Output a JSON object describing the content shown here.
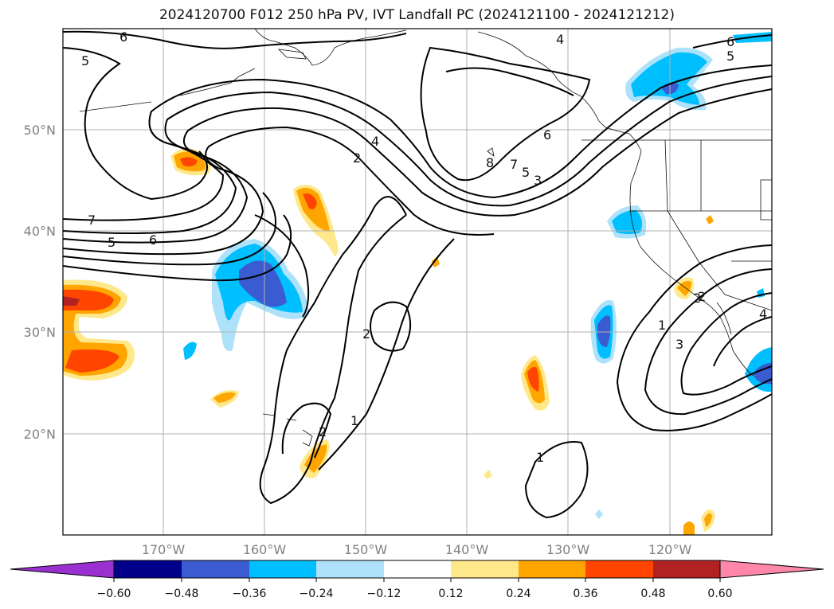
{
  "title": "2024120700 F012 250 hPa PV, IVT Landfall PC (2024121100 - 2024121212)",
  "map": {
    "lat_labels": [
      "50°N",
      "40°N",
      "30°N",
      "20°N"
    ],
    "lon_labels": [
      "170°W",
      "160°W",
      "150°W",
      "140°W",
      "130°W",
      "120°W"
    ],
    "contour_labels": [
      "6",
      "5",
      "4",
      "6",
      "5",
      "7",
      "5",
      "6",
      "4",
      "2",
      "2",
      "6",
      "7",
      "3",
      "5",
      "8",
      "2",
      "1",
      "2",
      "1",
      "1",
      "3",
      "2",
      "4"
    ]
  },
  "colorbar": {
    "tick_labels": [
      "−0.60",
      "−0.48",
      "−0.36",
      "−0.24",
      "−0.12",
      "0.12",
      "0.24",
      "0.36",
      "0.48",
      "0.60"
    ],
    "colors": [
      "#9b30d0",
      "#00008b",
      "#3b5bd0",
      "#00bfff",
      "#aee2fa",
      "#ffffff",
      "#ffe88a",
      "#ffa500",
      "#ff4500",
      "#b22222",
      "#ff88aa"
    ]
  }
}
